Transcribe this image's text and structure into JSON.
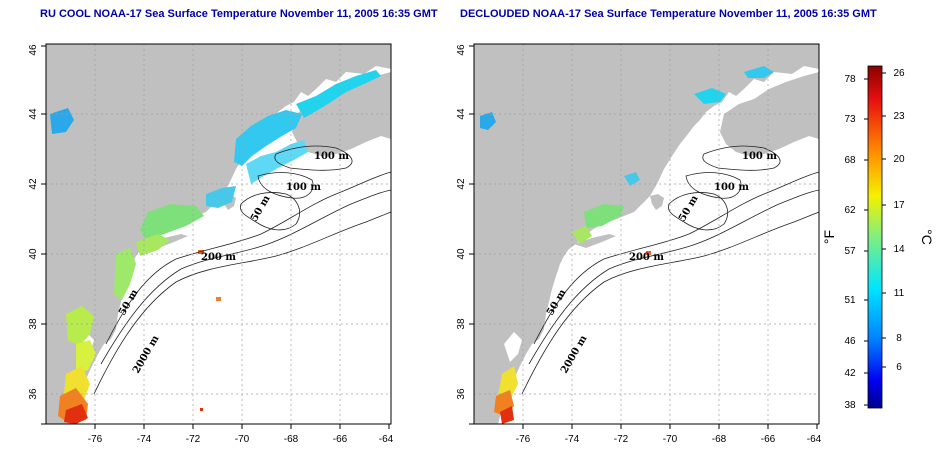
{
  "panels": [
    {
      "title": "RU COOL NOAA-17 Sea Surface Temperature November 11, 2005 16:35 GMT",
      "x_ticks": [
        "-76",
        "-74",
        "-72",
        "-70",
        "-68",
        "-66",
        "-64"
      ],
      "y_ticks": [
        "36",
        "38",
        "40",
        "42",
        "44",
        "46"
      ],
      "contour_labels": [
        "100 m",
        "100 m",
        "50 m",
        "200 m",
        "50 m",
        "2000 m"
      ]
    },
    {
      "title": "DECLOUDED NOAA-17 Sea Surface Temperature November 11, 2005 16:35 GMT",
      "x_ticks": [
        "-76",
        "-74",
        "-72",
        "-70",
        "-68",
        "-66",
        "-64"
      ],
      "y_ticks": [
        "36",
        "38",
        "40",
        "42",
        "44",
        "46"
      ],
      "contour_labels": [
        "100 m",
        "100 m",
        "50 m",
        "200 m",
        "50 m",
        "2000 m"
      ]
    }
  ],
  "colorbar": {
    "fahrenheit_label": "°F",
    "celsius_label": "°C",
    "fahrenheit_ticks": [
      "78",
      "73",
      "68",
      "62",
      "57",
      "51",
      "46",
      "42",
      "38"
    ],
    "celsius_ticks": [
      "26",
      "23",
      "20",
      "17",
      "14",
      "11",
      "8",
      "6"
    ],
    "colors": [
      "#8b0000",
      "#ff2000",
      "#ff8c00",
      "#ffff00",
      "#7fff7f",
      "#00ffff",
      "#0080ff",
      "#0000ff",
      "#00008b"
    ]
  },
  "colors": {
    "land": "#c0c0c0",
    "title": "#0000a8"
  }
}
